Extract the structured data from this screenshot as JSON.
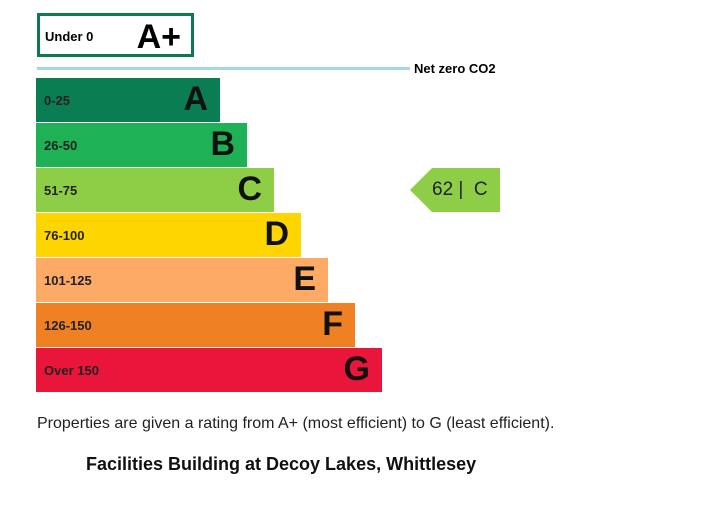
{
  "chart_data": {
    "type": "bar",
    "title": "",
    "xlabel": "",
    "ylabel": "",
    "top_band": {
      "range": "Under 0",
      "letter": "A+",
      "color": "#0b7a4f"
    },
    "net_zero_label": "Net zero CO2",
    "bands": [
      {
        "range": "0-25",
        "letter": "A",
        "color": "#0b7d52",
        "value": 1
      },
      {
        "range": "26-50",
        "letter": "B",
        "color": "#1fb156",
        "value": 2
      },
      {
        "range": "51-75",
        "letter": "C",
        "color": "#8dce46",
        "value": 3
      },
      {
        "range": "76-100",
        "letter": "D",
        "color": "#ffd500",
        "value": 4
      },
      {
        "range": "101-125",
        "letter": "E",
        "color": "#fcaa65",
        "value": 5
      },
      {
        "range": "126-150",
        "letter": "F",
        "color": "#ef8023",
        "value": 6
      },
      {
        "range": "Over 150",
        "letter": "G",
        "color": "#e9153b",
        "value": 7
      }
    ],
    "current_rating": {
      "score": 62,
      "letter": "C",
      "label": "62 |  C",
      "band_index": 2,
      "color": "#8dce46"
    }
  },
  "footnote": "Properties are given a rating from A+ (most efficient) to G (least efficient).",
  "building_title": "Facilities Building at Decoy Lakes, Whittlesey"
}
